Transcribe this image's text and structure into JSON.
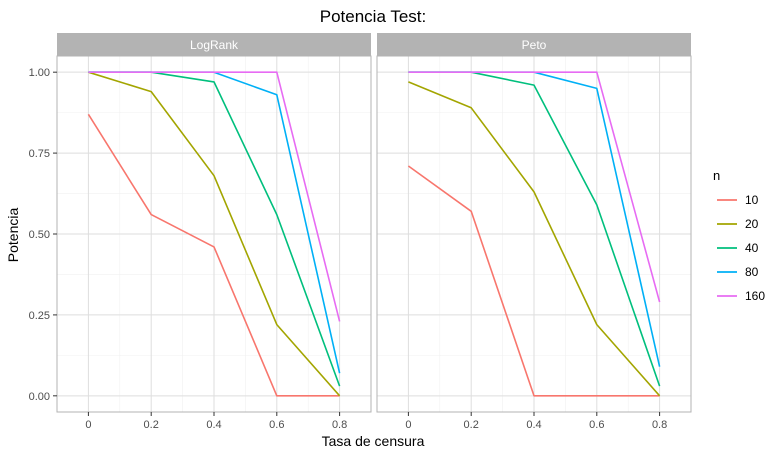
{
  "chart_data": {
    "type": "line",
    "title": "Potencia Test:",
    "xlabel": "Tasa de censura",
    "ylabel": "Potencia",
    "x": [
      0,
      0.2,
      0.4,
      0.6,
      0.8
    ],
    "x_ticks": [
      "0",
      "0.2",
      "0.4",
      "0.6",
      "0.8"
    ],
    "xlim": [
      -0.1,
      0.9
    ],
    "ylim": [
      -0.05,
      1.05
    ],
    "y_ticks": [
      "0.00",
      "0.25",
      "0.50",
      "0.75",
      "1.00"
    ],
    "grid": true,
    "legend": {
      "title": "n",
      "position": "right"
    },
    "panels": [
      {
        "name": "LogRank",
        "series": [
          {
            "name": "10",
            "color": "#F8766D",
            "values": [
              0.87,
              0.56,
              0.46,
              0.0,
              0.0
            ]
          },
          {
            "name": "20",
            "color": "#A3A500",
            "values": [
              1.0,
              0.94,
              0.68,
              0.22,
              0.0
            ]
          },
          {
            "name": "40",
            "color": "#00BF7D",
            "values": [
              1.0,
              1.0,
              0.97,
              0.56,
              0.03
            ]
          },
          {
            "name": "80",
            "color": "#00B0F6",
            "values": [
              1.0,
              1.0,
              1.0,
              0.93,
              0.07
            ]
          },
          {
            "name": "160",
            "color": "#E76BF3",
            "values": [
              1.0,
              1.0,
              1.0,
              1.0,
              0.23
            ]
          }
        ]
      },
      {
        "name": "Peto",
        "series": [
          {
            "name": "10",
            "color": "#F8766D",
            "values": [
              0.71,
              0.57,
              0.0,
              0.0,
              0.0
            ]
          },
          {
            "name": "20",
            "color": "#A3A500",
            "values": [
              0.97,
              0.89,
              0.63,
              0.22,
              0.0
            ]
          },
          {
            "name": "40",
            "color": "#00BF7D",
            "values": [
              1.0,
              1.0,
              0.96,
              0.59,
              0.03
            ]
          },
          {
            "name": "80",
            "color": "#00B0F6",
            "values": [
              1.0,
              1.0,
              1.0,
              0.95,
              0.09
            ]
          },
          {
            "name": "160",
            "color": "#E76BF3",
            "values": [
              1.0,
              1.0,
              1.0,
              1.0,
              0.29
            ]
          }
        ]
      }
    ]
  }
}
